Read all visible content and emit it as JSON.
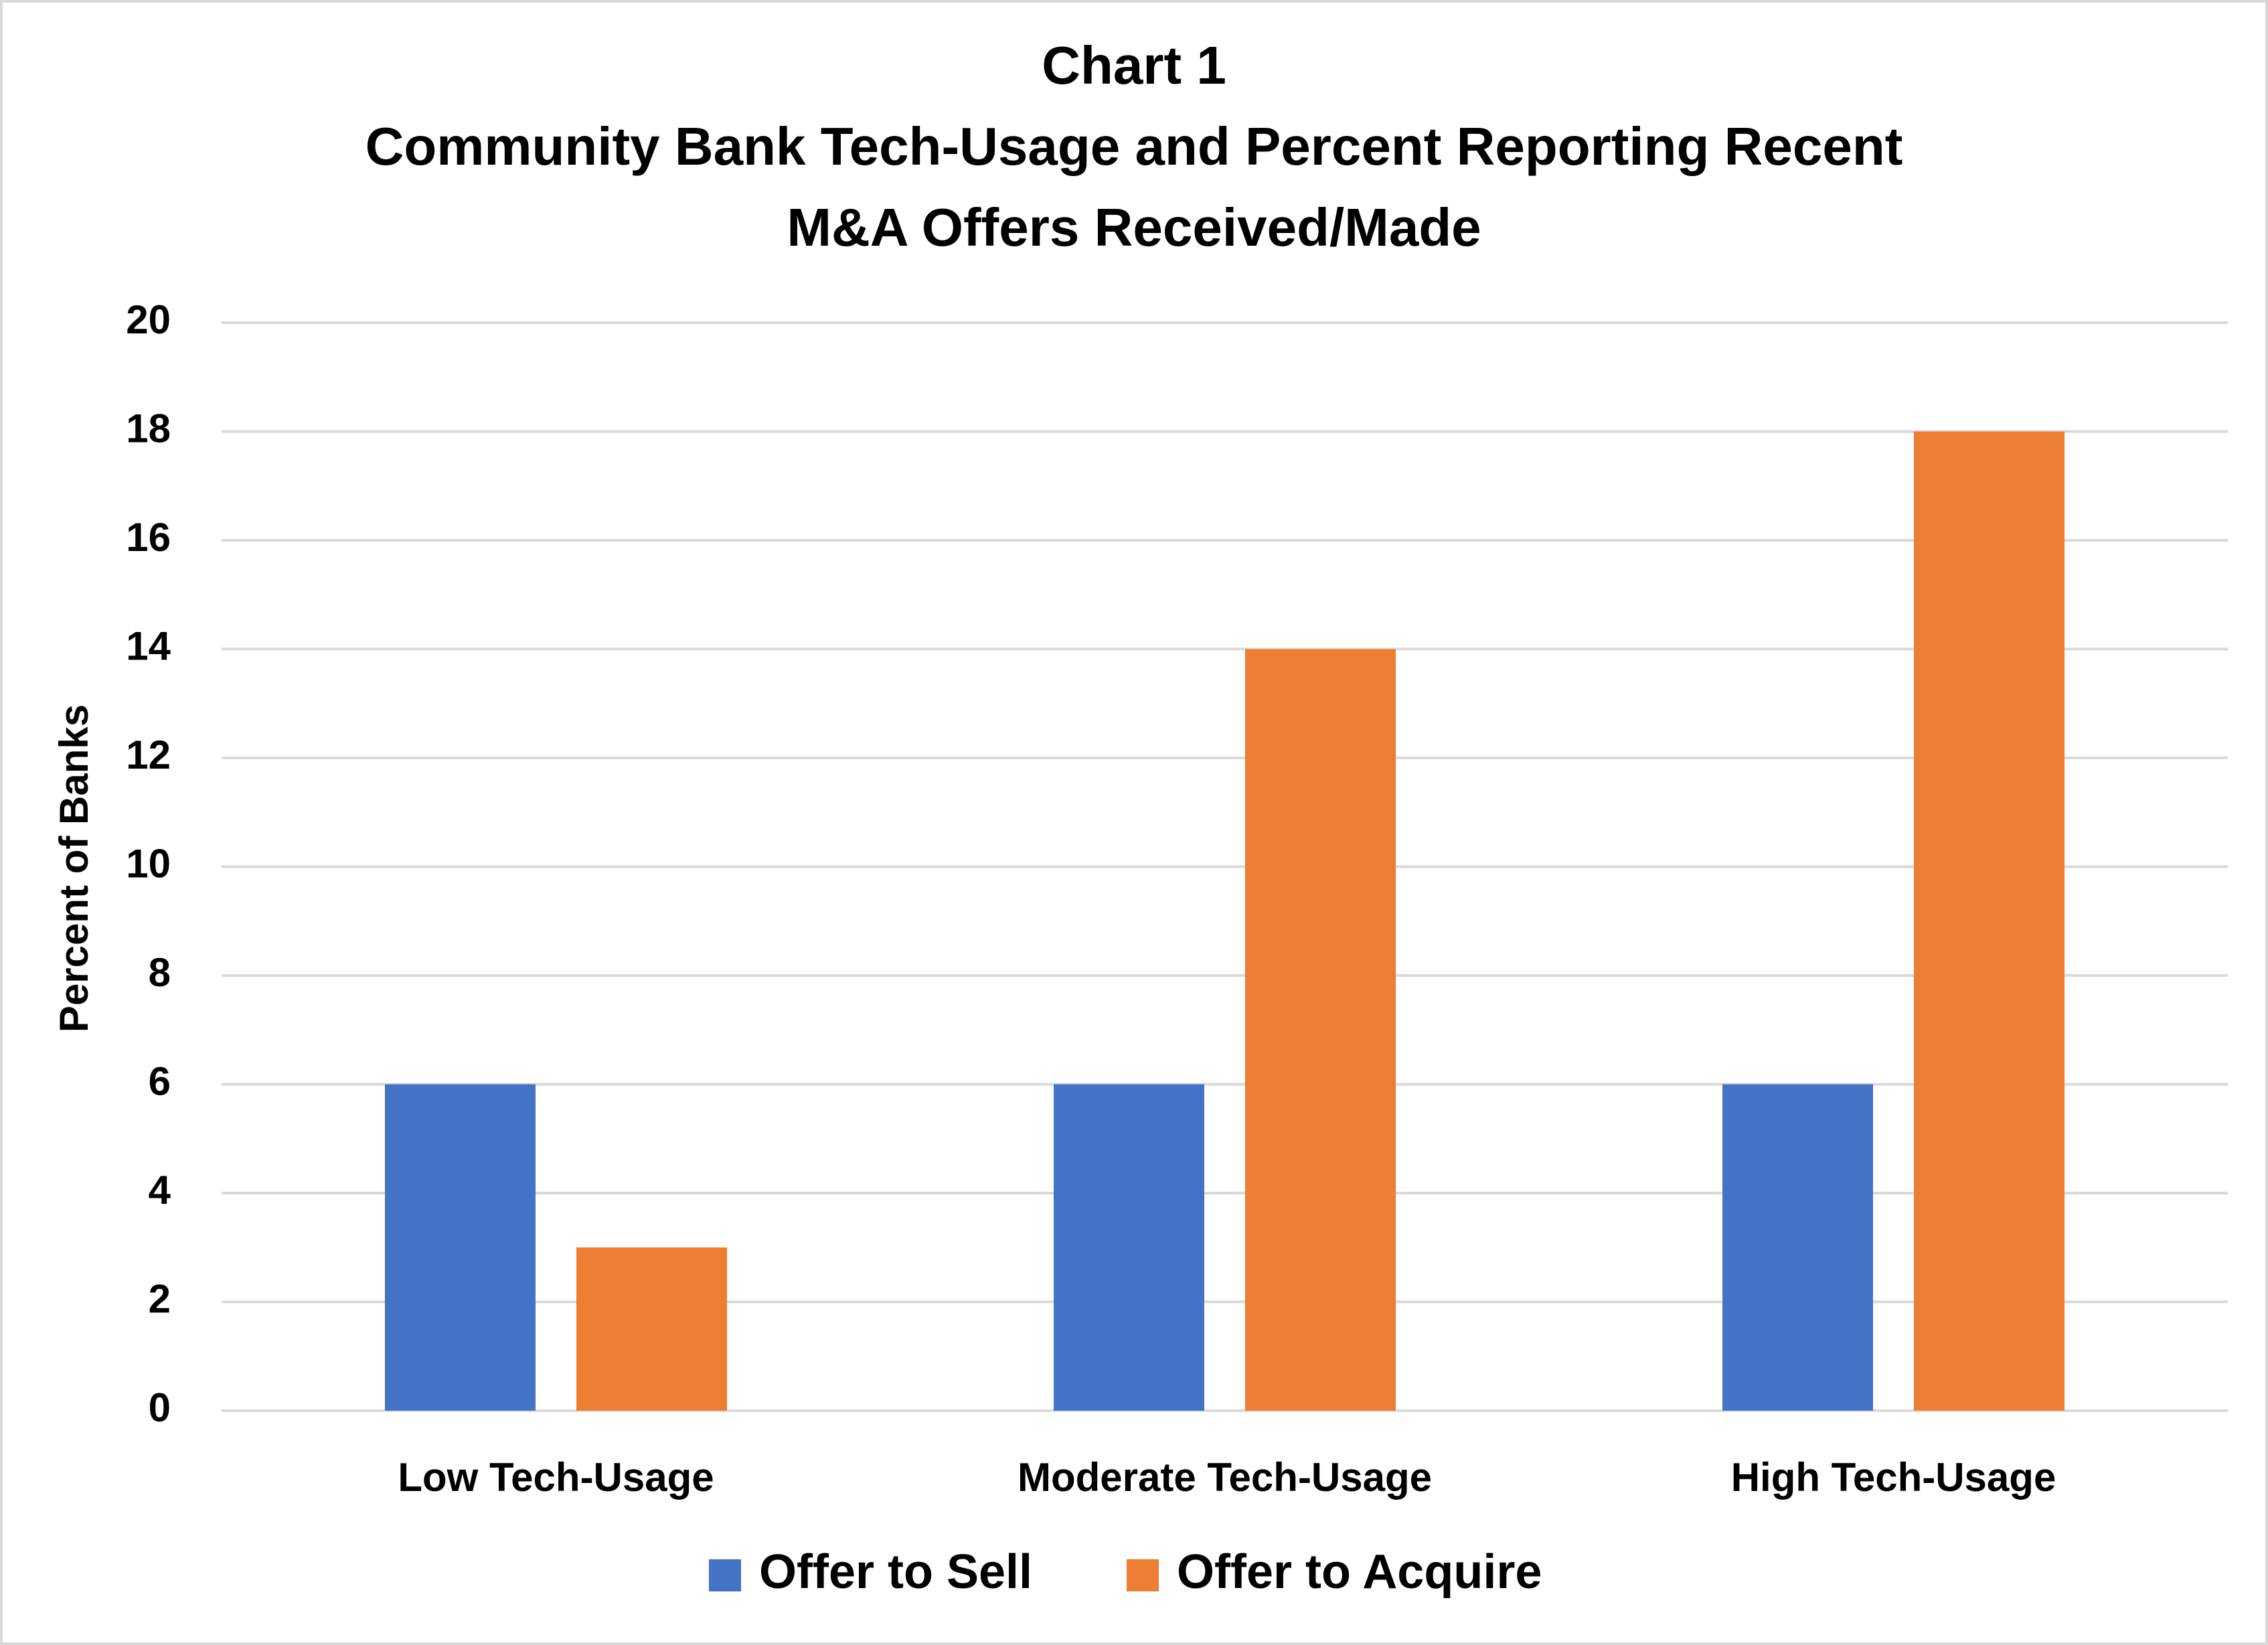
{
  "chart_data": {
    "type": "bar",
    "title": [
      "Chart 1",
      "Community Bank Tech-Usage and Percent Reporting Recent",
      "M&A Offers Received/Made"
    ],
    "y_label": "Percent of Banks",
    "categories": [
      "Low Tech-Usage",
      "Moderate Tech-Usage",
      "High Tech-Usage"
    ],
    "series": [
      {
        "name": "Offer to Sell",
        "color": "#4472c4",
        "values": [
          6,
          6,
          6
        ]
      },
      {
        "name": "Offer to Acquire",
        "color": "#ed7d31",
        "values": [
          3,
          14,
          18
        ]
      }
    ],
    "ylim": [
      0,
      20
    ],
    "yticks": [
      0,
      2,
      4,
      6,
      8,
      10,
      12,
      14,
      16,
      18,
      20
    ],
    "grid": true,
    "legend": "bottom"
  }
}
